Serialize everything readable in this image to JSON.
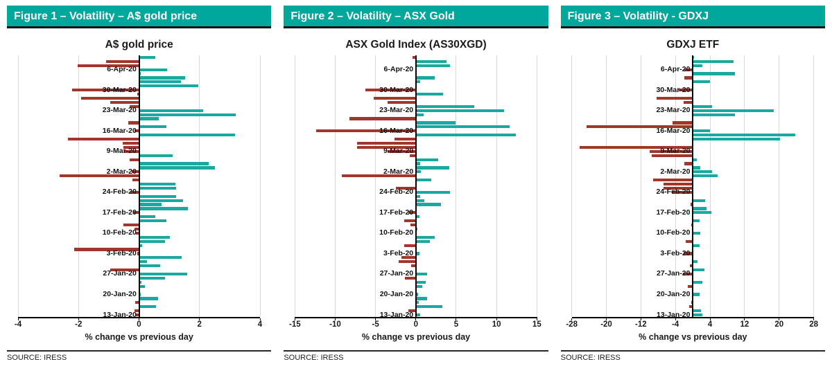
{
  "figures": [
    {
      "header_label": "Figure 1 – Volatility – A$ gold price",
      "source": "SOURCE: IRESS"
    },
    {
      "header_label": "Figure 2 – Volatility – ASX Gold",
      "source": "SOURCE: IRESS"
    },
    {
      "header_label": "Figure 3 – Volatility - GDXJ",
      "source": "SOURCE: IRESS"
    }
  ],
  "colors": {
    "header_teal": "#00A79B",
    "bar_positive": "#1AA9A0",
    "bar_negative": "#A3362A",
    "gridline": "#d9d9d9",
    "axis": "#000000"
  },
  "chart_data": [
    {
      "type": "bar",
      "orientation": "horizontal",
      "title": "A$ gold price",
      "xlabel": "% change vs previous day",
      "xlim": [
        -4,
        4
      ],
      "xticks": [
        -4,
        -2,
        0,
        2,
        4
      ],
      "grid": true,
      "n_bars": 64,
      "categories": [
        "6-Apr-20",
        "30-Mar-20",
        "23-Mar-20",
        "16-Mar-20",
        "9-Mar-20",
        "2-Mar-20",
        "24-Feb-20",
        "17-Feb-20",
        "10-Feb-20",
        "3-Feb-20",
        "27-Jan-20",
        "20-Jan-20",
        "13-Jan-20"
      ],
      "label_indices": [
        3,
        8,
        13,
        18,
        23,
        28,
        33,
        38,
        43,
        48,
        53,
        58,
        63
      ],
      "values": [
        0.55,
        -1.08,
        -2.04,
        0.93,
        0.05,
        1.52,
        1.39,
        1.95,
        -2.21,
        -0.05,
        -1.91,
        -0.96,
        -0.3,
        2.11,
        3.2,
        0.65,
        -0.35,
        0.9,
        -0.15,
        3.17,
        -2.36,
        -0.55,
        -0.52,
        -0.5,
        1.12,
        -0.32,
        2.31,
        2.52,
        -0.24,
        -2.63,
        -0.22,
        1.2,
        1.23,
        -0.28,
        1.22,
        1.46,
        0.75,
        1.62,
        -0.2,
        0.55,
        0.9,
        -0.52,
        -0.15,
        -0.1,
        1.02,
        0.85,
        0.1,
        -2.15,
        -0.05,
        1.4,
        0.27,
        0.7,
        -0.95,
        1.6,
        0.85,
        0.07,
        0.2,
        0.0,
        0.05,
        0.62,
        -0.12,
        0.57,
        -0.15,
        -0.1
      ]
    },
    {
      "type": "bar",
      "orientation": "horizontal",
      "title": "ASX Gold Index (AS30XGD)",
      "xlabel": "% change vs previous day",
      "xlim": [
        -15,
        15
      ],
      "xticks": [
        -15,
        -10,
        -5,
        0,
        5,
        10,
        15
      ],
      "grid": true,
      "n_bars": 64,
      "categories": [
        "6-Apr-20",
        "30-Mar-20",
        "23-Mar-20",
        "16-Mar-20",
        "9-Mar-20",
        "2-Mar-20",
        "24-Feb-20",
        "17-Feb-20",
        "10-Feb-20",
        "3-Feb-20",
        "27-Jan-20",
        "20-Jan-20",
        "13-Jan-20"
      ],
      "label_indices": [
        3,
        8,
        13,
        18,
        23,
        28,
        33,
        38,
        43,
        48,
        53,
        58,
        63
      ],
      "values": [
        -0.4,
        3.8,
        4.2,
        0.1,
        0.0,
        2.36,
        0.55,
        0.0,
        -6.3,
        3.36,
        -5.2,
        -3.5,
        7.2,
        10.9,
        0.98,
        -8.2,
        4.94,
        11.6,
        -12.4,
        12.4,
        -2.67,
        -7.3,
        -7.3,
        -3.5,
        -0.8,
        2.8,
        0.55,
        4.1,
        0.63,
        -9.2,
        1.9,
        0.0,
        -2.5,
        4.2,
        0.49,
        1.06,
        3.13,
        0.0,
        -0.9,
        0.43,
        -1.44,
        -0.66,
        0.2,
        0.1,
        2.36,
        1.7,
        -1.44,
        0.0,
        0.43,
        -1.8,
        -2.16,
        -0.6,
        0.0,
        1.4,
        -1.38,
        1.2,
        0.83,
        0.0,
        0.3,
        1.4,
        0.34,
        3.3,
        -0.9,
        0.55
      ]
    },
    {
      "type": "bar",
      "orientation": "horizontal",
      "title": "GDXJ ETF",
      "xlabel": "% change vs previous day",
      "xlim": [
        -28,
        28
      ],
      "xticks": [
        -28,
        -20,
        -12,
        -4,
        4,
        12,
        20,
        28
      ],
      "grid": true,
      "n_bars": 64,
      "categories": [
        "6-Apr-20",
        "30-Mar-20",
        "23-Mar-20",
        "16-Mar-20",
        "9-Mar-20",
        "2-Mar-20",
        "24-Feb-20",
        "17-Feb-20",
        "10-Feb-20",
        "3-Feb-20",
        "27-Jan-20",
        "20-Jan-20",
        "13-Jan-20"
      ],
      "label_indices": [
        3,
        8,
        13,
        18,
        23,
        28,
        33,
        38,
        43,
        48,
        53,
        58,
        63
      ],
      "values": [
        0.3,
        9.5,
        2.3,
        -2.0,
        9.8,
        -2.0,
        4.0,
        0.0,
        -3.3,
        0.0,
        -8.4,
        -2.1,
        4.4,
        18.8,
        9.8,
        0.0,
        -4.7,
        -24.6,
        4.0,
        23.8,
        20.2,
        0.0,
        -26.2,
        -10.0,
        -9.5,
        0.9,
        -1.9,
        1.7,
        4.4,
        5.7,
        -9.2,
        -6.7,
        -6.8,
        -4.9,
        0.0,
        2.9,
        -0.5,
        3.2,
        4.3,
        0.0,
        1.5,
        -0.4,
        0.0,
        1.7,
        0.0,
        -1.6,
        1.5,
        0.0,
        -2.1,
        0.0,
        1.1,
        -0.6,
        2.7,
        -2.3,
        0.0,
        2.2,
        -1.2,
        0.0,
        1.6,
        0.0,
        -0.4,
        -0.9,
        1.9,
        2.3
      ]
    }
  ]
}
